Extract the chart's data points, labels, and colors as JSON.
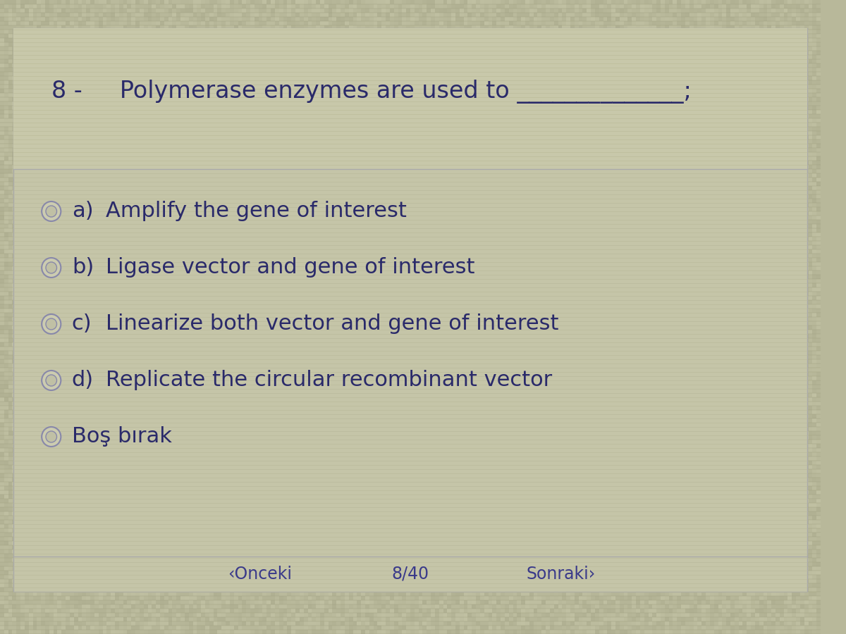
{
  "bg_color": "#b8b89a",
  "card_color": "#c8c8aa",
  "question_number": "8 -",
  "question_text": "Polymerase enzymes are used to ______________;",
  "options": [
    {
      "label": "a)",
      "text": "Amplify the gene of interest"
    },
    {
      "label": "b)",
      "text": "Ligase vector and gene of interest"
    },
    {
      "label": "c)",
      "text": "Linearize both vector and gene of interest"
    },
    {
      "label": "d)",
      "text": "Replicate the circular recombinant vector"
    }
  ],
  "blank_option": "Boş bırak",
  "nav_prev": "‹Onceki",
  "nav_current": "8/40",
  "nav_next": "Sonraki›",
  "text_color": "#2a2a6a",
  "nav_color": "#3a3a8a",
  "question_fontsize": 24,
  "option_fontsize": 22,
  "nav_fontsize": 17,
  "radio_color": "#8888aa",
  "grid_color": "#a8a888",
  "separator_color": "#a0a080"
}
